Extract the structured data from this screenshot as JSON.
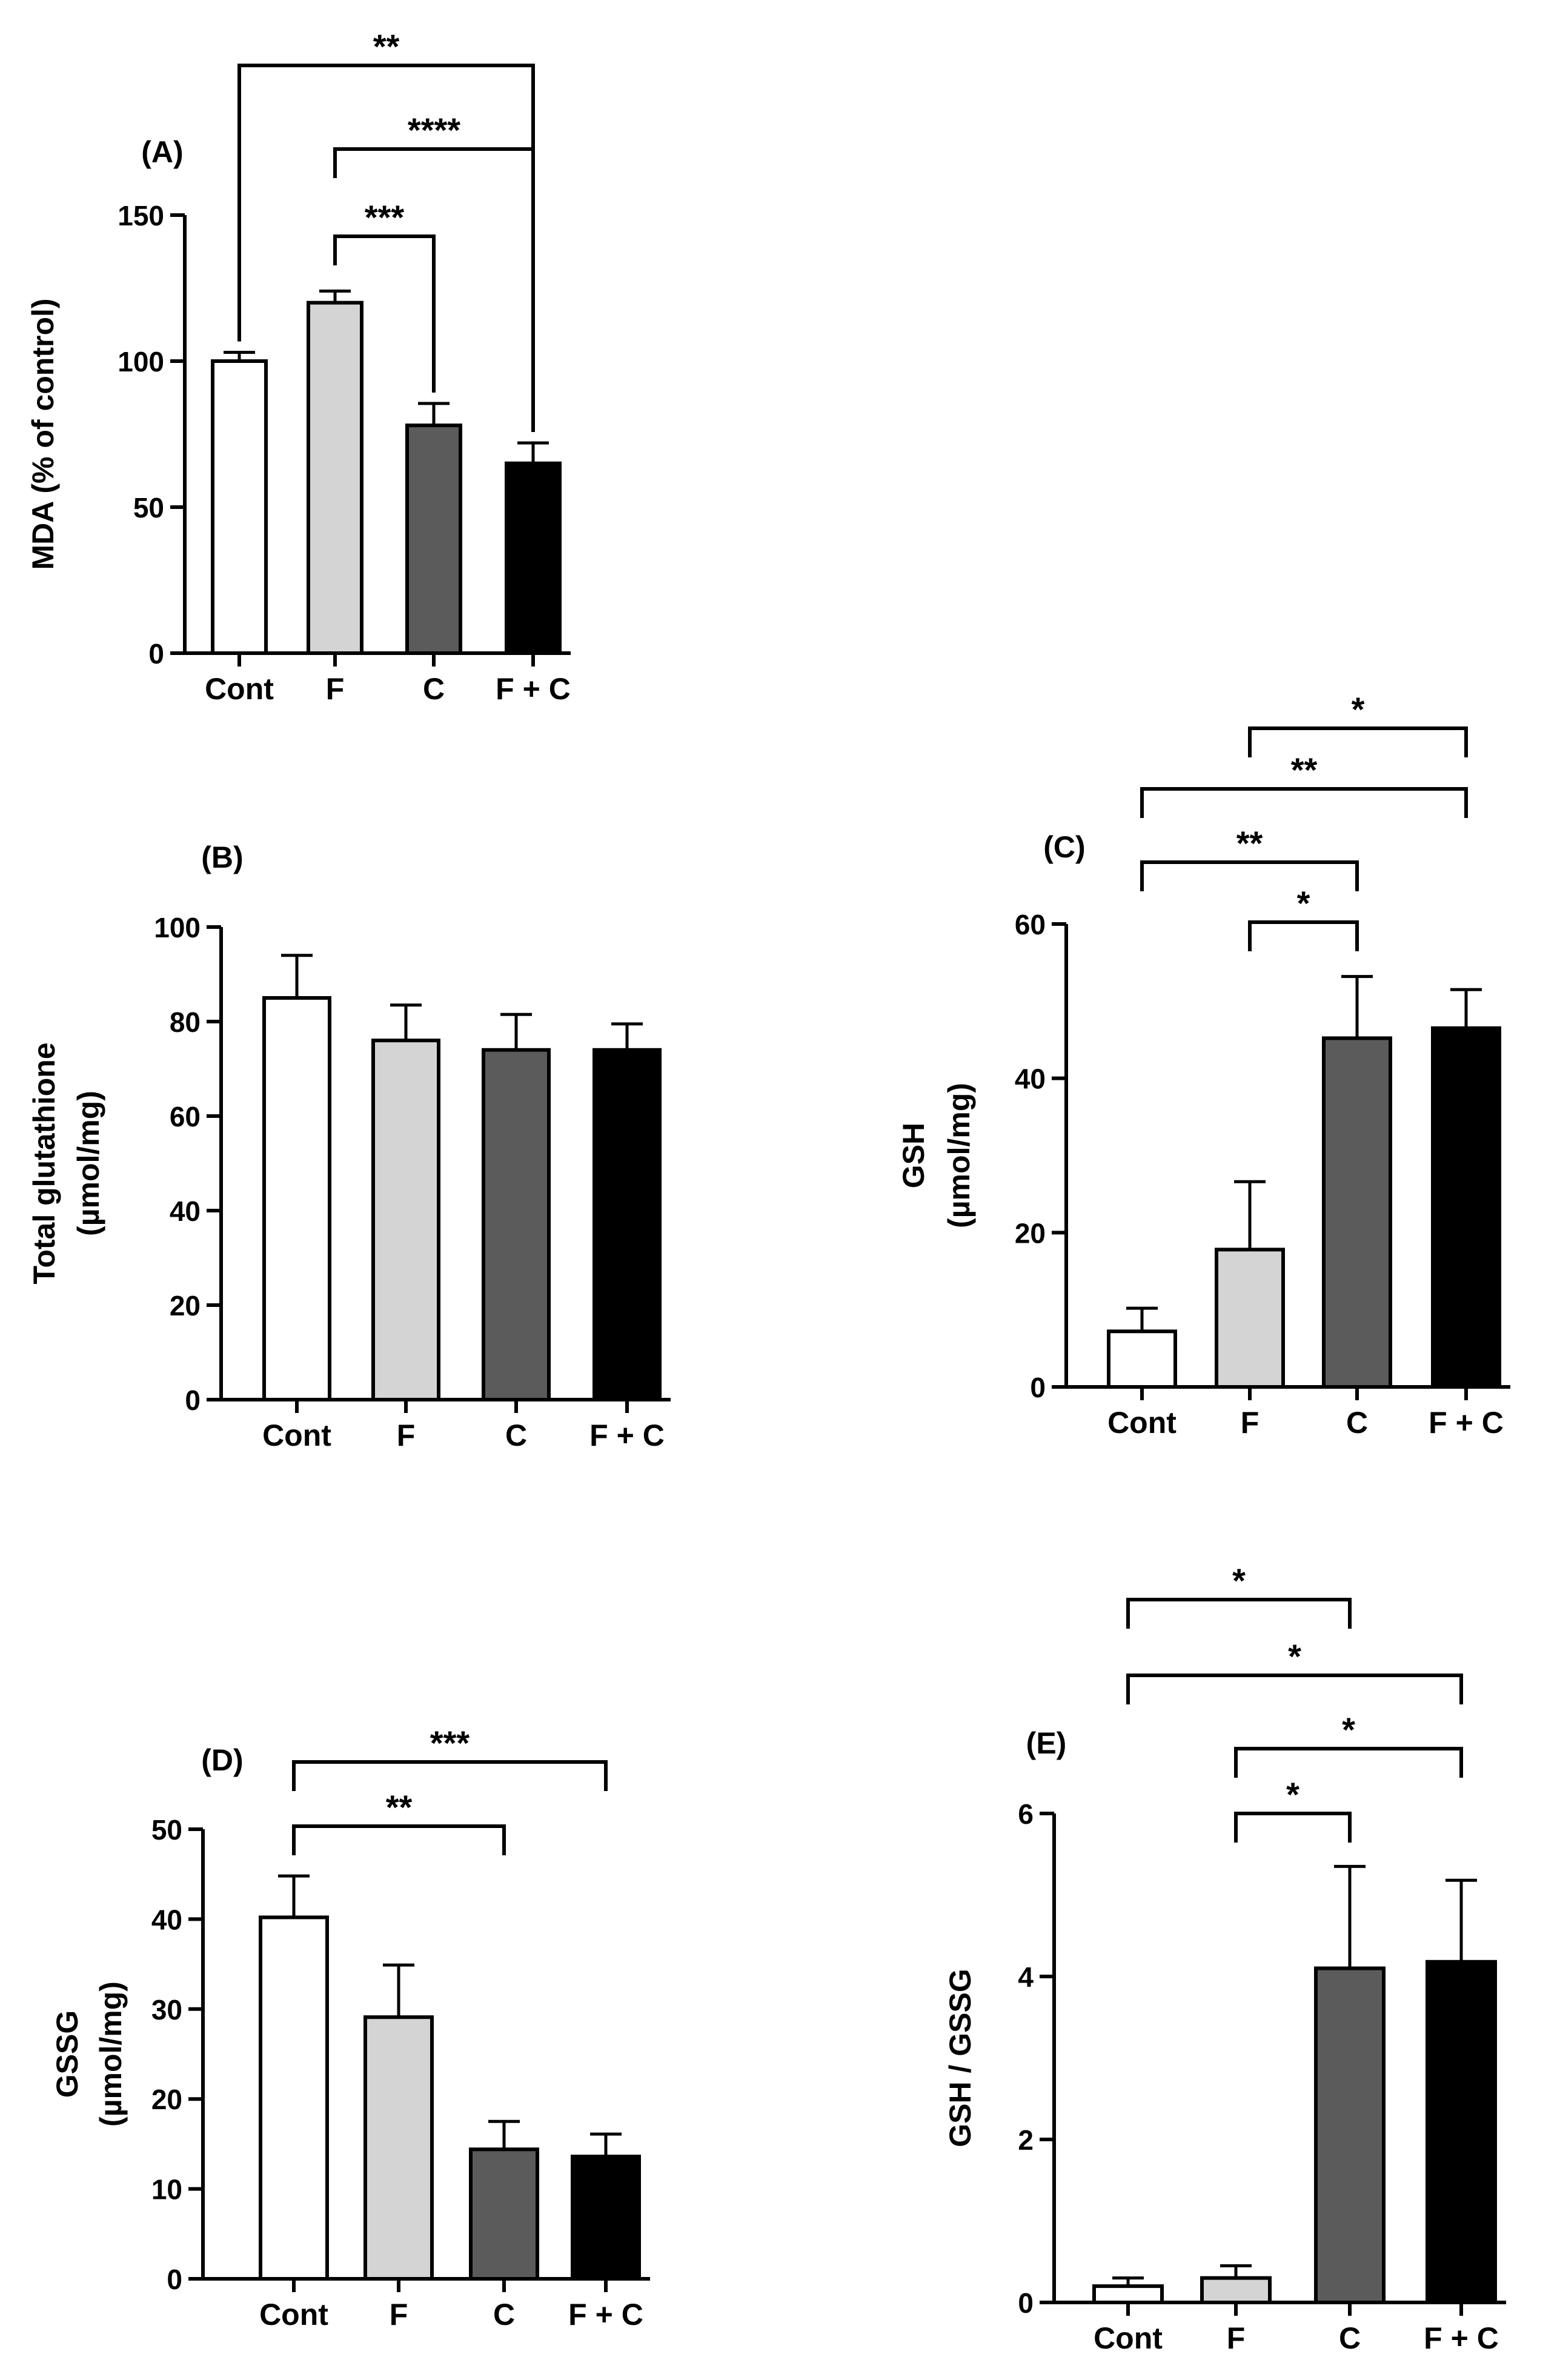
{
  "chart_data": [
    {
      "type": "bar",
      "panel_label": "(A)",
      "categories": [
        "Cont",
        "F",
        "C",
        "F + C"
      ],
      "values": [
        100,
        120,
        78,
        65
      ],
      "errors": [
        3,
        4,
        7.5,
        7
      ],
      "colors": [
        "#ffffff",
        "#d4d4d4",
        "#5b5b5b",
        "#000000"
      ],
      "ylabel": "MDA (% of control)",
      "ylim": [
        0,
        150
      ],
      "yticks": [
        0,
        50,
        100,
        150
      ],
      "significance": [
        {
          "from": 0,
          "to": 3,
          "label": "**"
        },
        {
          "from": 1,
          "to": 3,
          "label": "****"
        },
        {
          "from": 1,
          "to": 2,
          "label": "***"
        }
      ]
    },
    {
      "type": "bar",
      "panel_label": "(B)",
      "categories": [
        "Cont",
        "F",
        "C",
        "F + C"
      ],
      "values": [
        85,
        76,
        74,
        74
      ],
      "errors": [
        9,
        7.5,
        7.5,
        5.5
      ],
      "colors": [
        "#ffffff",
        "#d4d4d4",
        "#5b5b5b",
        "#000000"
      ],
      "ylabel": "Total glutathione",
      "ylabel2": "(µmol/mg)",
      "ylim": [
        0,
        100
      ],
      "yticks": [
        0,
        20,
        40,
        60,
        80,
        100
      ],
      "significance": []
    },
    {
      "type": "bar",
      "panel_label": "(C)",
      "categories": [
        "Cont",
        "F",
        "C",
        "F + C"
      ],
      "values": [
        7.2,
        17.8,
        45.2,
        46.5
      ],
      "errors": [
        3,
        8.8,
        8,
        5
      ],
      "colors": [
        "#ffffff",
        "#d4d4d4",
        "#5b5b5b",
        "#000000"
      ],
      "ylabel": "GSH",
      "ylabel2": "(µmol/mg)",
      "ylim": [
        0,
        60
      ],
      "yticks": [
        0,
        20,
        40,
        60
      ],
      "significance": [
        {
          "from": 1,
          "to": 3,
          "label": "*"
        },
        {
          "from": 0,
          "to": 3,
          "label": "**"
        },
        {
          "from": 0,
          "to": 2,
          "label": "**"
        },
        {
          "from": 1,
          "to": 2,
          "label": "*"
        }
      ]
    },
    {
      "type": "bar",
      "panel_label": "(D)",
      "categories": [
        "Cont",
        "F",
        "C",
        "F + C"
      ],
      "values": [
        40.2,
        29.1,
        14.4,
        13.6
      ],
      "errors": [
        4.6,
        5.8,
        3.1,
        2.5
      ],
      "colors": [
        "#ffffff",
        "#d4d4d4",
        "#5b5b5b",
        "#000000"
      ],
      "ylabel": "GSSG",
      "ylabel2": "(µmol/mg)",
      "ylim": [
        0,
        50
      ],
      "yticks": [
        0,
        10,
        20,
        30,
        40,
        50
      ],
      "significance": [
        {
          "from": 0,
          "to": 3,
          "label": "***"
        },
        {
          "from": 0,
          "to": 2,
          "label": "**"
        }
      ]
    },
    {
      "type": "bar",
      "panel_label": "(E)",
      "categories": [
        "Cont",
        "F",
        "C",
        "F + C"
      ],
      "values": [
        0.2,
        0.3,
        4.1,
        4.18
      ],
      "errors": [
        0.1,
        0.15,
        1.25,
        1.0
      ],
      "colors": [
        "#ffffff",
        "#d4d4d4",
        "#5b5b5b",
        "#000000"
      ],
      "ylabel": "GSH / GSSG",
      "ylim": [
        0,
        6
      ],
      "yticks": [
        0,
        2,
        4,
        6
      ],
      "significance": [
        {
          "from": 0,
          "to": 2,
          "label": "*"
        },
        {
          "from": 0,
          "to": 3,
          "label": "*"
        },
        {
          "from": 1,
          "to": 3,
          "label": "*"
        },
        {
          "from": 1,
          "to": 2,
          "label": "*"
        }
      ]
    }
  ]
}
